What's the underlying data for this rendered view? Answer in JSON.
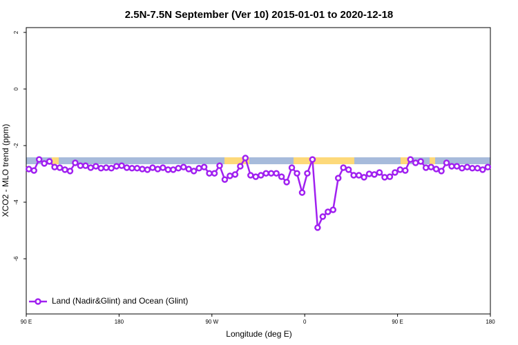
{
  "chart_data": {
    "type": "line",
    "title": "2.5N-7.5N September (Ver 10)   2015-01-01 to 2020-12-18",
    "x_label": "Longitude (deg E)",
    "y_label": "XCO2 - MLO trend (ppm)",
    "x": [
      92.5,
      97.5,
      102.5,
      107.5,
      112.5,
      117.5,
      122.5,
      127.5,
      132.5,
      137.5,
      142.5,
      147.5,
      152.5,
      157.5,
      162.5,
      167.5,
      172.5,
      177.5,
      182.5,
      187.5,
      192.5,
      197.5,
      202.5,
      207.5,
      212.5,
      217.5,
      222.5,
      227.5,
      232.5,
      237.5,
      242.5,
      247.5,
      252.5,
      257.5,
      262.5,
      267.5,
      272.5,
      277.5,
      282.5,
      287.5,
      292.5,
      297.5,
      302.5,
      307.5,
      312.5,
      317.5,
      322.5,
      327.5,
      332.5,
      337.5,
      342.5,
      347.5,
      352.5,
      357.5,
      362.5,
      367.5,
      372.5,
      377.5,
      382.5,
      387.5,
      392.5,
      397.5,
      402.5,
      407.5,
      412.5,
      417.5,
      422.5,
      427.5,
      432.5,
      437.5,
      442.5,
      447.5,
      452.5,
      457.5,
      462.5,
      467.5,
      472.5,
      477.5,
      482.5,
      487.5,
      492.5,
      497.5,
      502.5,
      507.5,
      512.5,
      517.5,
      522.5,
      527.5,
      532.5,
      537.5
    ],
    "series": [
      {
        "name": "Land (Nadir&Glint) and Ocean (Glint)",
        "color": "#a020f0",
        "values": [
          -2.83,
          -2.88,
          -2.49,
          -2.63,
          -2.56,
          -2.76,
          -2.78,
          -2.85,
          -2.9,
          -2.61,
          -2.71,
          -2.71,
          -2.78,
          -2.73,
          -2.8,
          -2.78,
          -2.8,
          -2.73,
          -2.71,
          -2.78,
          -2.8,
          -2.8,
          -2.83,
          -2.85,
          -2.78,
          -2.83,
          -2.78,
          -2.85,
          -2.85,
          -2.8,
          -2.76,
          -2.83,
          -2.9,
          -2.8,
          -2.76,
          -2.98,
          -2.98,
          -2.71,
          -3.2,
          -3.07,
          -3.02,
          -2.73,
          -2.44,
          -3.05,
          -3.1,
          -3.05,
          -2.98,
          -2.98,
          -2.98,
          -3.1,
          -3.29,
          -2.78,
          -2.98,
          -3.66,
          -2.98,
          -2.49,
          -4.9,
          -4.51,
          -4.34,
          -4.27,
          -3.15,
          -2.78,
          -2.85,
          -3.05,
          -3.05,
          -3.12,
          -3.0,
          -3.02,
          -2.95,
          -3.12,
          -3.1,
          -2.95,
          -2.85,
          -2.88,
          -2.49,
          -2.61,
          -2.56,
          -2.78,
          -2.76,
          -2.83,
          -2.9,
          -2.61,
          -2.73,
          -2.73,
          -2.8,
          -2.76,
          -2.8,
          -2.8,
          -2.85,
          -2.76
        ]
      }
    ],
    "xlim": [
      90,
      540
    ],
    "xticks": [
      {
        "value": 90,
        "label": "90 E"
      },
      180,
      {
        "value": 270,
        "label": "90 W"
      },
      {
        "value": 360,
        "label": "0"
      },
      {
        "value": 450,
        "label": "90 E"
      },
      {
        "value": 540,
        "label": "180"
      }
    ],
    "ylim": [
      -7.95,
      2.17
    ],
    "yticks": [
      -6,
      -4,
      -2,
      0,
      2
    ],
    "legend": "bottomleft"
  }
}
